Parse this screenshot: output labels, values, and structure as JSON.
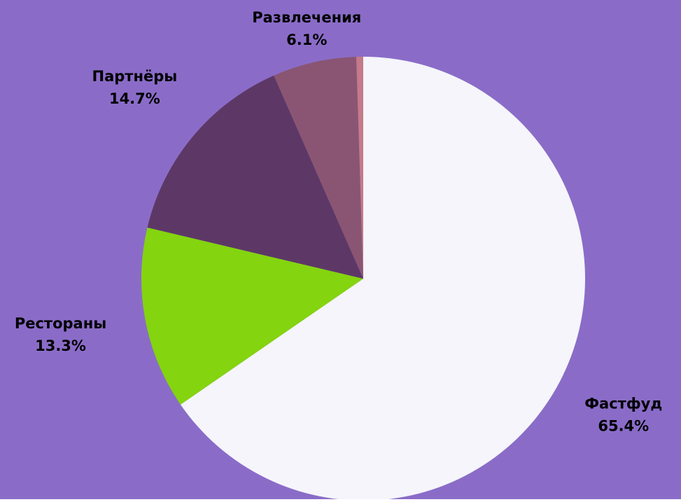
{
  "chart_data": {
    "type": "pie",
    "categories": [
      "Фастфуд",
      "Рестораны",
      "Партнёры",
      "Развлечения",
      null
    ],
    "values": [
      65.4,
      13.3,
      14.7,
      6.1,
      0.5
    ],
    "value_labels": [
      "65.4%",
      "13.3%",
      "14.7%",
      "6.1%",
      null
    ],
    "colors": [
      "#f5f5fb",
      "#84d40f",
      "#5d3866",
      "#8a5573",
      "#c47a8a"
    ],
    "background": "#8a6cc8"
  }
}
